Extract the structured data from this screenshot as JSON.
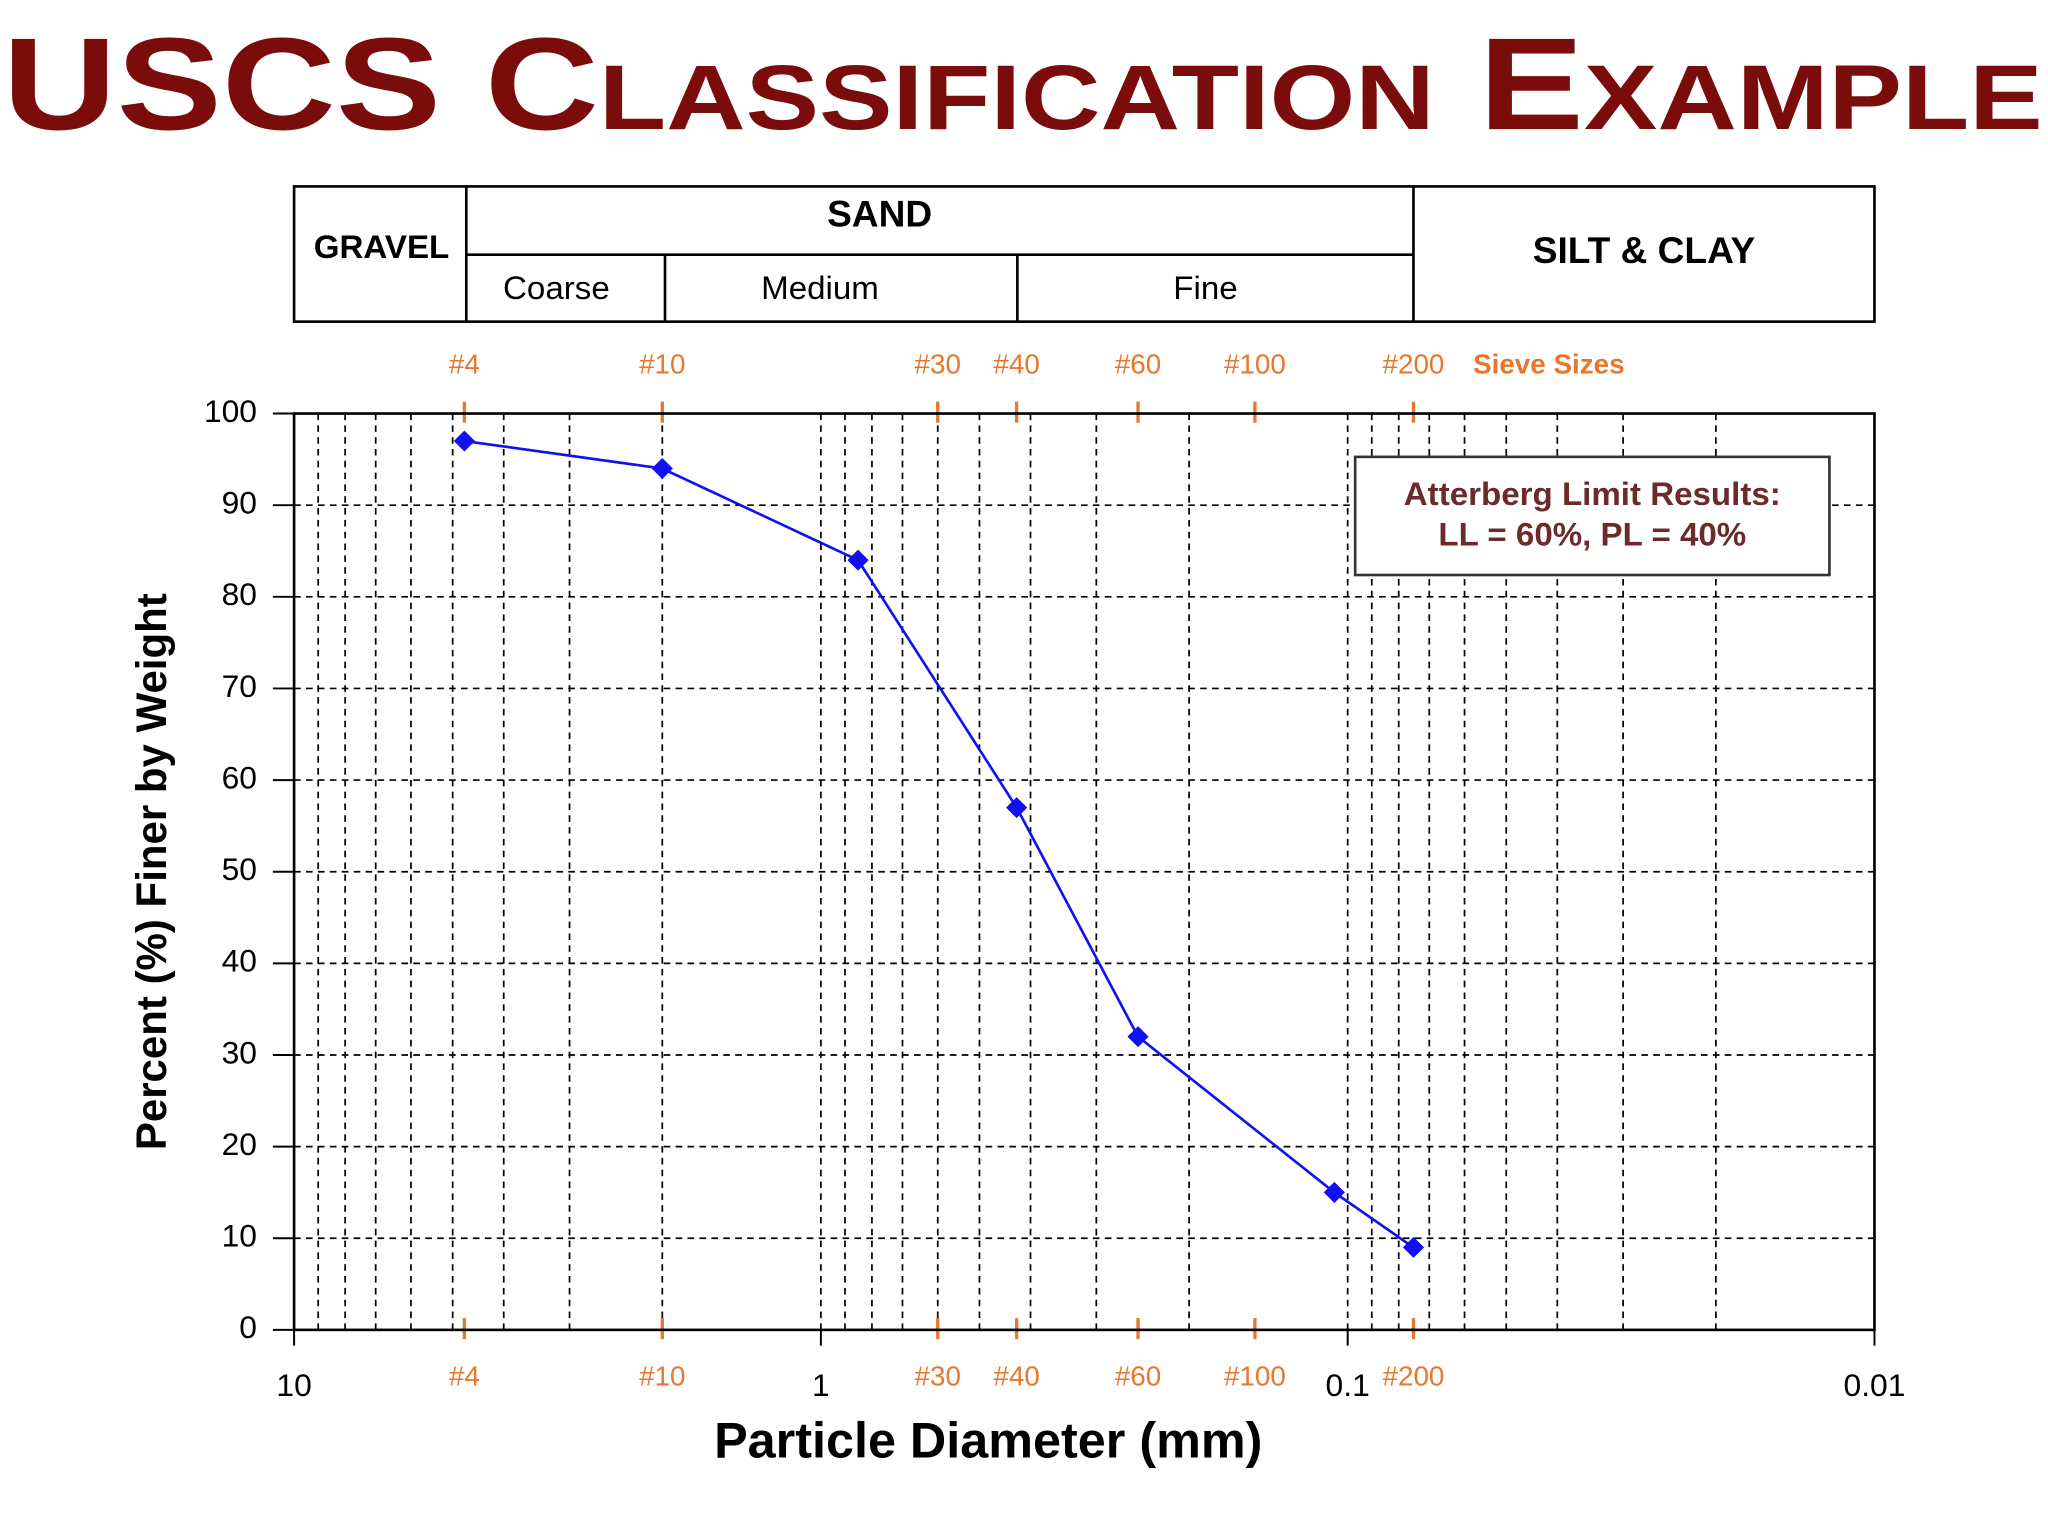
{
  "chart_data": {
    "type": "line",
    "title": "USCS Classification Example",
    "header": {
      "gravel": "GRAVEL",
      "sand": "SAND",
      "coarse": "Coarse",
      "medium": "Medium",
      "fine": "Fine",
      "silt_clay": "SILT & CLAY"
    },
    "sieve_label": "Sieve Sizes",
    "sieve_ticks": [
      {
        "value": 4.75,
        "label": "#4"
      },
      {
        "value": 2.0,
        "label": "#10"
      },
      {
        "value": 0.6,
        "label": "#30"
      },
      {
        "value": 0.425,
        "label": "#40"
      },
      {
        "value": 0.25,
        "label": "#60"
      },
      {
        "value": 0.15,
        "label": "#100"
      },
      {
        "value": 0.075,
        "label": "#200"
      }
    ],
    "annotation": [
      "Atterberg Limit Results:",
      "LL = 60%, PL = 40%"
    ],
    "x_label": "Particle Diameter (mm)",
    "y_label": "Percent (%) Finer by Weight",
    "x": [
      4.75,
      2.0,
      0.85,
      0.425,
      0.25,
      0.106,
      0.075
    ],
    "values": [
      97,
      94,
      84,
      57,
      32,
      15,
      9
    ],
    "color": "#1010f0",
    "xlim": [
      10,
      0.01
    ],
    "x_log": true,
    "xticks": [
      10,
      1,
      0.1,
      0.01
    ],
    "ylim": [
      0,
      100
    ],
    "yticks": [
      0,
      10,
      20,
      30,
      40,
      50,
      60,
      70,
      80,
      90,
      100
    ],
    "grid": true,
    "minor_grid": true
  }
}
